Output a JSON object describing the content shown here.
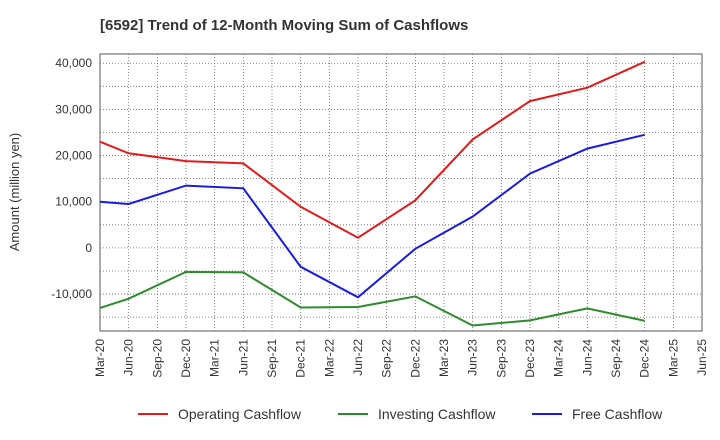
{
  "chart_data": {
    "type": "line",
    "title": "[6592]  Trend of 12-Month Moving Sum of Cashflows",
    "ylabel": "Amount (million yen)",
    "xlabel": "",
    "ylim": [
      -18000,
      42000
    ],
    "yticks": [
      40000,
      30000,
      20000,
      10000,
      0,
      -10000
    ],
    "ytick_labels": [
      "40,000",
      "30,000",
      "20,000",
      "10,000",
      "0",
      "-10,000"
    ],
    "categories": [
      "Mar-20",
      "Jun-20",
      "Sep-20",
      "Dec-20",
      "Mar-21",
      "Jun-21",
      "Sep-21",
      "Dec-21",
      "Mar-22",
      "Jun-22",
      "Sep-22",
      "Dec-22",
      "Mar-23",
      "Jun-23",
      "Sep-23",
      "Dec-23",
      "Mar-24",
      "Jun-24",
      "Sep-24",
      "Dec-24",
      "Mar-25",
      "Jun-25"
    ],
    "grid": true,
    "legend_position": "bottom",
    "series": [
      {
        "name": "Operating Cashflow",
        "color": "#e41a1a",
        "values": [
          23000,
          20500,
          null,
          18800,
          null,
          18300,
          null,
          8900,
          null,
          2200,
          null,
          10300,
          null,
          23500,
          null,
          31800,
          null,
          34700,
          null,
          40300,
          null,
          null
        ]
      },
      {
        "name": "Investing Cashflow",
        "color": "#2e8b2e",
        "values": [
          -13000,
          -11000,
          null,
          -5200,
          null,
          -5300,
          null,
          -12900,
          null,
          -12800,
          null,
          -10500,
          null,
          -16800,
          null,
          -15700,
          null,
          -13100,
          null,
          -15800,
          null,
          null
        ]
      },
      {
        "name": "Free Cashflow",
        "color": "#1a1ae4",
        "values": [
          10000,
          9500,
          null,
          13500,
          null,
          12900,
          null,
          -4100,
          null,
          -10700,
          null,
          -200,
          null,
          6800,
          null,
          16100,
          null,
          21500,
          null,
          24500,
          null,
          null
        ]
      }
    ]
  }
}
